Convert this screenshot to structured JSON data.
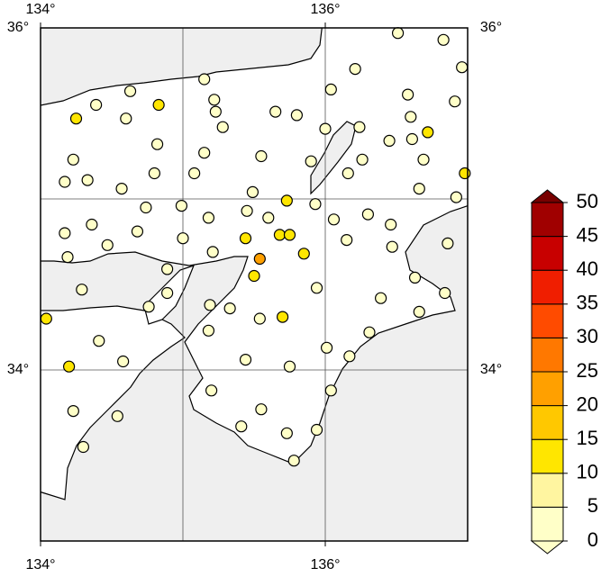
{
  "chart_data": {
    "type": "map",
    "xlim": [
      134,
      137
    ],
    "ylim": [
      33,
      36
    ],
    "xticks": [
      {
        "value": 134,
        "label": "134°"
      },
      {
        "value": 136,
        "label": "136°"
      }
    ],
    "yticks": [
      {
        "value": 34,
        "label": "34°"
      },
      {
        "value": 36,
        "label": "36°"
      }
    ],
    "xgrid": [
      135,
      136
    ],
    "ygrid": [
      34,
      35
    ],
    "colorbar": {
      "ticks": [
        0,
        5,
        10,
        15,
        20,
        25,
        30,
        35,
        40,
        45,
        50
      ],
      "colors": [
        "#ffffc8",
        "#fff5a0",
        "#ffe600",
        "#ffc800",
        "#ffa000",
        "#ff7800",
        "#ff4b00",
        "#f01e00",
        "#c80000",
        "#a00000"
      ],
      "over_color": "#780000",
      "under_color": "#ffffc8"
    },
    "stations": {
      "lon": [
        136.51,
        136.83,
        136.96,
        136.21,
        135.15,
        136.04,
        136.58,
        134.63,
        134.39,
        134.83,
        134.25,
        134.6,
        135.23,
        135.22,
        135.28,
        135.8,
        135.65,
        136.91,
        136.6,
        136.24,
        136.0,
        136.72,
        136.61,
        136.45,
        134.82,
        134.23,
        135.15,
        135.55,
        135.9,
        136.26,
        136.69,
        134.8,
        135.08,
        134.17,
        134.33,
        136.16,
        134.57,
        135.49,
        136.66,
        136.92,
        136.98,
        135.73,
        135.93,
        134.99,
        134.74,
        135.45,
        135.18,
        136.3,
        136.46,
        134.36,
        135.6,
        136.06,
        134.68,
        134.17,
        135.44,
        135.68,
        135.75,
        135.0,
        136.15,
        136.86,
        136.47,
        134.47,
        134.19,
        135.21,
        135.85,
        135.54,
        135.5,
        134.29,
        134.89,
        135.94,
        136.63,
        136.39,
        136.84,
        135.33,
        134.89,
        134.76,
        135.19,
        135.54,
        135.7,
        136.66,
        134.04,
        134.41,
        135.18,
        136.31,
        136.01,
        136.17,
        134.58,
        135.44,
        135.75,
        134.2,
        135.2,
        136.04,
        134.23,
        135.55,
        134.54,
        135.41,
        135.94,
        135.73,
        134.3,
        135.78
      ],
      "lat": [
        35.97,
        35.93,
        35.77,
        35.76,
        35.7,
        35.64,
        35.61,
        35.63,
        35.55,
        35.55,
        35.47,
        35.47,
        35.51,
        35.58,
        35.42,
        35.49,
        35.51,
        35.57,
        35.48,
        35.42,
        35.41,
        35.39,
        35.35,
        35.34,
        35.32,
        35.23,
        35.27,
        35.25,
        35.22,
        35.23,
        35.23,
        35.15,
        35.15,
        35.1,
        35.11,
        35.15,
        35.06,
        35.04,
        35.06,
        35.01,
        35.15,
        34.99,
        34.97,
        34.96,
        34.95,
        34.93,
        34.89,
        34.91,
        34.85,
        34.85,
        34.89,
        34.88,
        34.81,
        34.8,
        34.77,
        34.79,
        34.79,
        34.77,
        34.76,
        34.74,
        34.72,
        34.73,
        34.66,
        34.69,
        34.68,
        34.65,
        34.55,
        34.47,
        34.59,
        34.48,
        34.54,
        34.42,
        34.45,
        34.36,
        34.45,
        34.37,
        34.38,
        34.3,
        34.31,
        34.34,
        34.3,
        34.17,
        34.23,
        34.22,
        34.13,
        34.08,
        34.05,
        34.06,
        34.02,
        34.02,
        33.88,
        33.88,
        33.76,
        33.77,
        33.73,
        33.67,
        33.65,
        33.63,
        33.55,
        33.47
      ],
      "values": [
        3,
        3,
        3,
        3,
        3,
        3,
        3,
        3,
        3,
        12,
        12,
        3,
        3,
        3,
        3,
        3,
        3,
        3,
        3,
        3,
        3,
        12,
        3,
        3,
        3,
        3,
        3,
        3,
        3,
        3,
        3,
        3,
        3,
        3,
        3,
        3,
        3,
        3,
        3,
        3,
        12,
        12,
        3,
        3,
        3,
        3,
        3,
        3,
        3,
        3,
        3,
        3,
        3,
        3,
        12,
        12,
        12,
        3,
        3,
        3,
        3,
        3,
        3,
        3,
        12,
        20,
        12,
        3,
        3,
        3,
        3,
        3,
        3,
        3,
        3,
        3,
        3,
        3,
        12,
        3,
        12,
        3,
        3,
        3,
        3,
        3,
        3,
        3,
        3,
        12,
        3,
        3,
        3,
        3,
        3,
        3,
        3,
        3,
        3,
        3
      ]
    }
  }
}
